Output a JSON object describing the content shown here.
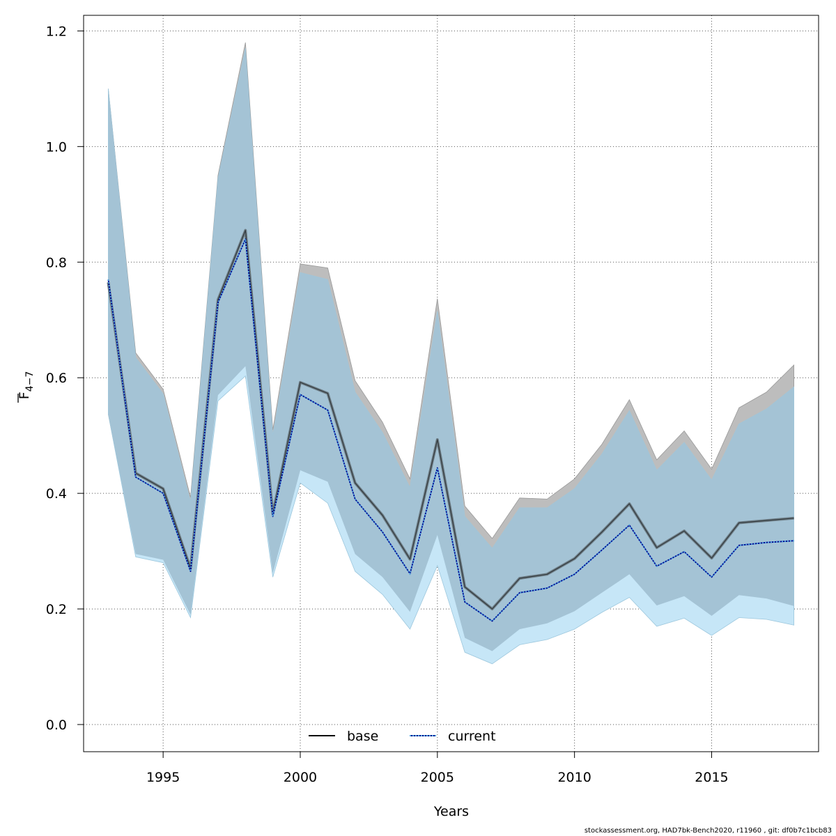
{
  "chart_data": {
    "type": "line",
    "xlabel": "Years",
    "ylabel": {
      "main": "F",
      "sub": "4−7"
    },
    "xlim": [
      1992.1,
      2018.9
    ],
    "ylim": [
      -0.047,
      1.227
    ],
    "xticks": [
      1995,
      2000,
      2005,
      2010,
      2015
    ],
    "yticks": [
      0.0,
      0.2,
      0.4,
      0.6,
      0.8,
      1.0,
      1.2
    ],
    "ytick_labels": [
      "0.0",
      "0.2",
      "0.4",
      "0.6",
      "0.8",
      "1.0",
      "1.2"
    ],
    "grid": true,
    "legend": {
      "placement": "bottom-center",
      "base_label": "base",
      "current_label": "current"
    },
    "colors": {
      "base_line": "#000000",
      "base_band": "#bdbdbd",
      "current_line": "#00008b",
      "current_band": "#c6e6f7",
      "overlap_band": "#a4c3d5",
      "current_dots": "#4aa3df"
    },
    "x": [
      1993,
      1994,
      1995,
      1996,
      1997,
      1998,
      1999,
      2000,
      2001,
      2002,
      2003,
      2004,
      2005,
      2006,
      2007,
      2008,
      2009,
      2010,
      2011,
      2012,
      2013,
      2014,
      2015,
      2016,
      2017,
      2018
    ],
    "series": [
      {
        "name": "base",
        "values": [
          0.765,
          0.435,
          0.408,
          0.27,
          0.735,
          0.855,
          0.365,
          0.592,
          0.573,
          0.418,
          0.362,
          0.286,
          0.493,
          0.238,
          0.2,
          0.253,
          0.26,
          0.287,
          0.333,
          0.382,
          0.306,
          0.335,
          0.288,
          0.349,
          0.353,
          0.357
        ],
        "upper": [
          1.1,
          0.643,
          0.58,
          0.393,
          0.95,
          1.18,
          0.51,
          0.797,
          0.79,
          0.595,
          0.523,
          0.425,
          0.737,
          0.378,
          0.322,
          0.392,
          0.39,
          0.425,
          0.485,
          0.562,
          0.458,
          0.508,
          0.442,
          0.548,
          0.575,
          0.622
        ],
        "lower": [
          0.537,
          0.295,
          0.285,
          0.19,
          0.57,
          0.62,
          0.262,
          0.44,
          0.42,
          0.295,
          0.255,
          0.195,
          0.328,
          0.15,
          0.127,
          0.165,
          0.175,
          0.196,
          0.228,
          0.26,
          0.206,
          0.222,
          0.188,
          0.224,
          0.218,
          0.205
        ]
      },
      {
        "name": "current",
        "values": [
          0.77,
          0.428,
          0.4,
          0.265,
          0.73,
          0.84,
          0.36,
          0.571,
          0.544,
          0.39,
          0.333,
          0.261,
          0.444,
          0.212,
          0.179,
          0.228,
          0.236,
          0.26,
          0.302,
          0.345,
          0.274,
          0.299,
          0.255,
          0.31,
          0.315,
          0.318
        ],
        "upper": [
          1.1,
          0.635,
          0.572,
          0.385,
          0.945,
          1.17,
          0.5,
          0.782,
          0.77,
          0.575,
          0.505,
          0.41,
          0.715,
          0.36,
          0.305,
          0.375,
          0.375,
          0.408,
          0.468,
          0.543,
          0.44,
          0.488,
          0.423,
          0.52,
          0.546,
          0.584
        ],
        "lower": [
          0.537,
          0.29,
          0.28,
          0.185,
          0.56,
          0.603,
          0.255,
          0.418,
          0.383,
          0.265,
          0.225,
          0.165,
          0.275,
          0.125,
          0.105,
          0.138,
          0.147,
          0.165,
          0.194,
          0.22,
          0.17,
          0.184,
          0.154,
          0.185,
          0.182,
          0.172
        ]
      }
    ]
  },
  "footer": "stockassessment.org, HAD7bk-Bench2020, r11960 , git: df0b7c1bcb83"
}
